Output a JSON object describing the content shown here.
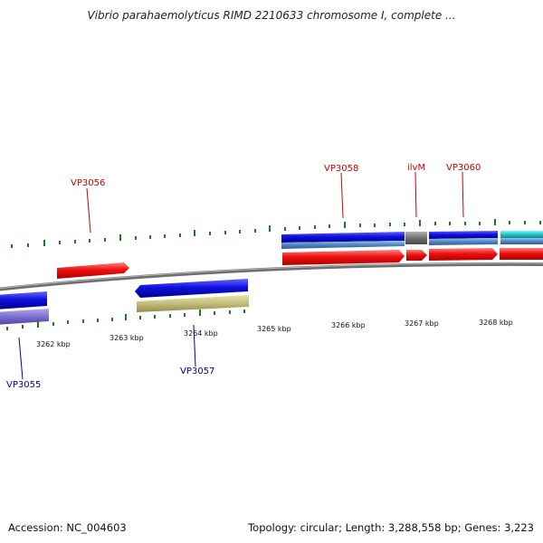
{
  "title": "Vibrio parahaemolyticus RIMD 2210633 chromosome I, complete ...",
  "footer": {
    "accession": "Accession: NC_004603",
    "summary": "Topology: circular; Length: 3,288,558 bp; Genes: 3,223"
  },
  "colors": {
    "label_forward": "#cc0000",
    "label_reverse": "#00009a",
    "tick_mark": "#1f7a1f",
    "backbone": "#808080"
  },
  "kbp_ticks": [
    "3262 kbp",
    "3263 kbp",
    "3264 kbp",
    "3265 kbp",
    "3266 kbp",
    "3267 kbp",
    "3268 kbp"
  ],
  "gene_labels": [
    {
      "name": "VP3056",
      "strand": "forward"
    },
    {
      "name": "VP3058",
      "strand": "forward"
    },
    {
      "name": "ilvM",
      "strand": "forward"
    },
    {
      "name": "VP3060",
      "strand": "forward"
    },
    {
      "name": "VP3055",
      "strand": "reverse"
    },
    {
      "name": "VP3057",
      "strand": "reverse"
    }
  ]
}
